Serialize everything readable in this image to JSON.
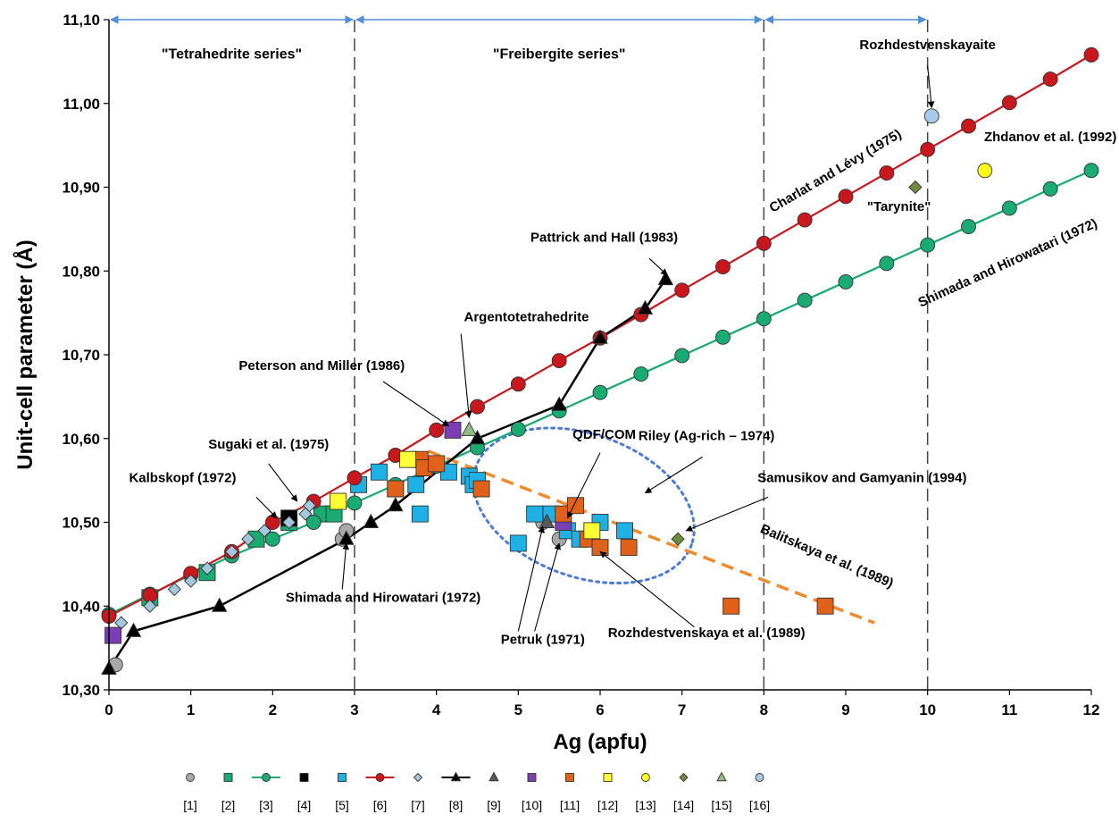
{
  "chart_data": {
    "type": "scatter",
    "xlabel": "Ag (apfu)",
    "ylabel": "Unit-cell parameter (Å)",
    "xlim": [
      0,
      12
    ],
    "ylim": [
      10.3,
      11.1
    ],
    "x_ticks": [
      "0",
      "1",
      "2",
      "3",
      "4",
      "5",
      "6",
      "7",
      "8",
      "9",
      "10",
      "11",
      "12"
    ],
    "y_ticks": [
      "10,30",
      "10,40",
      "10,50",
      "10,60",
      "10,70",
      "10,80",
      "10,90",
      "11,00",
      "11,10"
    ],
    "grid": false,
    "legend_position": "bottom",
    "region_boundaries": [
      3,
      8,
      10
    ],
    "regions": [
      {
        "label": "\"Tetrahedrite series\"",
        "x": 1.5,
        "y": 11.06
      },
      {
        "label": "\"Freibergite series\"",
        "x": 5.5,
        "y": 11.06
      }
    ],
    "series": [
      {
        "name": "[1]",
        "marker": "circle",
        "color": "#a8a8a8",
        "line": false,
        "points": [
          [
            0.08,
            10.33
          ],
          [
            2.85,
            10.48
          ],
          [
            2.9,
            10.49
          ],
          [
            5.3,
            10.5
          ],
          [
            5.5,
            10.48
          ]
        ]
      },
      {
        "name": "[2]",
        "marker": "square",
        "color": "#1aab73",
        "line": false,
        "points": [
          [
            0.5,
            10.41
          ],
          [
            1.2,
            10.44
          ],
          [
            1.8,
            10.48
          ],
          [
            2.2,
            10.5
          ],
          [
            2.6,
            10.51
          ],
          [
            2.75,
            10.51
          ]
        ]
      },
      {
        "name": "[3]",
        "marker": "circle",
        "color": "#1aab73",
        "line": true,
        "line_color": "#1aab73",
        "points": [
          [
            0,
            10.39
          ],
          [
            0.5,
            10.414
          ],
          [
            1.0,
            10.437
          ],
          [
            1.5,
            10.46
          ],
          [
            2.0,
            10.48
          ],
          [
            2.5,
            10.5
          ],
          [
            3.0,
            10.523
          ],
          [
            3.5,
            10.545
          ],
          [
            4.0,
            10.567
          ],
          [
            4.5,
            10.589
          ],
          [
            5.0,
            10.611
          ],
          [
            5.5,
            10.633
          ],
          [
            6.0,
            10.655
          ],
          [
            6.5,
            10.677
          ],
          [
            7.0,
            10.699
          ],
          [
            7.5,
            10.721
          ],
          [
            8.0,
            10.743
          ],
          [
            8.5,
            10.765
          ],
          [
            9.0,
            10.787
          ],
          [
            9.5,
            10.809
          ],
          [
            10.0,
            10.831
          ],
          [
            10.5,
            10.853
          ],
          [
            11.0,
            10.875
          ],
          [
            11.5,
            10.898
          ],
          [
            12.0,
            10.92
          ]
        ]
      },
      {
        "name": "[4]",
        "marker": "square",
        "color": "#000000",
        "line": false,
        "points": [
          [
            2.2,
            10.505
          ]
        ]
      },
      {
        "name": "[5]",
        "marker": "square",
        "color": "#1fb0e6",
        "line": false,
        "points": [
          [
            3.05,
            10.545
          ],
          [
            3.3,
            10.56
          ],
          [
            3.5,
            10.54
          ],
          [
            3.75,
            10.545
          ],
          [
            3.8,
            10.51
          ],
          [
            4.15,
            10.56
          ],
          [
            4.4,
            10.555
          ],
          [
            4.45,
            10.545
          ],
          [
            4.5,
            10.55
          ],
          [
            5.0,
            10.475
          ],
          [
            5.2,
            10.51
          ],
          [
            5.4,
            10.51
          ],
          [
            5.6,
            10.49
          ],
          [
            5.75,
            10.48
          ],
          [
            6.0,
            10.5
          ],
          [
            6.3,
            10.49
          ]
        ]
      },
      {
        "name": "[6]",
        "marker": "circle",
        "color": "#c8171d",
        "line": true,
        "line_color": "#c8171d",
        "points": [
          [
            0,
            10.388
          ],
          [
            0.5,
            10.413
          ],
          [
            1.0,
            10.439
          ],
          [
            1.5,
            10.465
          ],
          [
            2.0,
            10.5
          ],
          [
            2.5,
            10.525
          ],
          [
            3.0,
            10.553
          ],
          [
            3.5,
            10.58
          ],
          [
            4.0,
            10.61
          ],
          [
            4.5,
            10.638
          ],
          [
            5.0,
            10.665
          ],
          [
            5.5,
            10.693
          ],
          [
            6.0,
            10.72
          ],
          [
            6.5,
            10.748
          ],
          [
            7.0,
            10.777
          ],
          [
            7.5,
            10.805
          ],
          [
            8.0,
            10.833
          ],
          [
            8.5,
            10.861
          ],
          [
            9.0,
            10.889
          ],
          [
            9.5,
            10.917
          ],
          [
            10.0,
            10.945
          ],
          [
            10.5,
            10.973
          ],
          [
            11.0,
            11.001
          ],
          [
            11.5,
            11.029
          ],
          [
            12.0,
            11.058
          ]
        ]
      },
      {
        "name": "[7]",
        "marker": "diamond",
        "color": "#a3c8de",
        "line": false,
        "points": [
          [
            0.15,
            10.38
          ],
          [
            0.5,
            10.4
          ],
          [
            0.8,
            10.42
          ],
          [
            1.0,
            10.43
          ],
          [
            1.2,
            10.445
          ],
          [
            1.5,
            10.465
          ],
          [
            1.7,
            10.48
          ],
          [
            1.9,
            10.49
          ],
          [
            2.2,
            10.5
          ],
          [
            2.4,
            10.51
          ],
          [
            2.45,
            10.52
          ]
        ]
      },
      {
        "name": "[8]",
        "marker": "triangle",
        "color": "#000000",
        "line": true,
        "line_color": "#000000",
        "points": [
          [
            0,
            10.325
          ],
          [
            0.3,
            10.37
          ],
          [
            1.35,
            10.4
          ],
          [
            2.9,
            10.48
          ],
          [
            3.2,
            10.5
          ],
          [
            3.5,
            10.52
          ],
          [
            4.5,
            10.6
          ],
          [
            5.5,
            10.64
          ],
          [
            6.0,
            10.72
          ],
          [
            6.55,
            10.755
          ],
          [
            6.8,
            10.79
          ]
        ]
      },
      {
        "name": "[9]",
        "marker": "triangle",
        "color": "#5a5a5a",
        "line": false,
        "points": [
          [
            5.35,
            10.5
          ]
        ]
      },
      {
        "name": "[10]",
        "marker": "square",
        "color": "#7b3fb4",
        "line": false,
        "points": [
          [
            0.05,
            10.365
          ],
          [
            4.2,
            10.61
          ],
          [
            5.55,
            10.5
          ]
        ]
      },
      {
        "name": "[11]",
        "marker": "square",
        "color": "#e0611a",
        "line": false,
        "points": [
          [
            3.5,
            10.54
          ],
          [
            3.8,
            10.575
          ],
          [
            3.85,
            10.565
          ],
          [
            4.0,
            10.57
          ],
          [
            4.55,
            10.54
          ],
          [
            5.55,
            10.51
          ],
          [
            5.7,
            10.52
          ],
          [
            5.85,
            10.48
          ],
          [
            6.0,
            10.47
          ],
          [
            6.35,
            10.47
          ],
          [
            7.6,
            10.4
          ],
          [
            8.75,
            10.4
          ]
        ]
      },
      {
        "name": "[12]",
        "marker": "square",
        "color": "#ffff33",
        "line": false,
        "points": [
          [
            2.8,
            10.525
          ],
          [
            3.65,
            10.575
          ],
          [
            5.9,
            10.49
          ]
        ]
      },
      {
        "name": "[13]",
        "marker": "circle",
        "color": "#ffff1a",
        "line": false,
        "points": [
          [
            10.7,
            10.92
          ]
        ]
      },
      {
        "name": "[14]",
        "marker": "diamond",
        "color": "#6e8c3e",
        "line": false,
        "points": [
          [
            9.85,
            10.9
          ],
          [
            6.95,
            10.48
          ]
        ]
      },
      {
        "name": "[15]",
        "marker": "triangle",
        "color": "#8fbf86",
        "line": false,
        "points": [
          [
            4.4,
            10.61
          ]
        ]
      },
      {
        "name": "[16]",
        "marker": "circle",
        "color": "#a9c8ea",
        "line": false,
        "points": [
          [
            10.05,
            10.985
          ]
        ]
      }
    ],
    "trend_line": {
      "style": "dashed",
      "color": "#f28a2c",
      "points": [
        [
          3.9,
          10.585
        ],
        [
          9.35,
          10.38
        ]
      ]
    },
    "ellipse": {
      "style": "dotted",
      "color": "#4a7bd8",
      "cx": 5.8,
      "cy": 10.52,
      "rx": 1.4,
      "ry": 0.085
    },
    "annotations": [
      {
        "text": "Rozhdestvenskayaite",
        "x": 10.0,
        "y": 11.065
      },
      {
        "text": "Zhdanov et al. (1992)",
        "x": 11.5,
        "y": 10.955
      },
      {
        "text": "\"Tarynite\"",
        "x": 9.65,
        "y": 10.872
      },
      {
        "text": "Pattrick and Hall (1983)",
        "x": 6.05,
        "y": 10.835
      },
      {
        "text": "Argentotetrahedrite",
        "x": 5.1,
        "y": 10.74
      },
      {
        "text": "Peterson and Miller (1986)",
        "x": 2.6,
        "y": 10.682
      },
      {
        "text": "Sugaki et al. (1975)",
        "x": 1.95,
        "y": 10.588
      },
      {
        "text": "QDF/COM",
        "x": 6.05,
        "y": 10.6
      },
      {
        "text": "Riley (Ag-rich – 1974)",
        "x": 7.3,
        "y": 10.598
      },
      {
        "text": "Kalbskopf (1972)",
        "x": 0.9,
        "y": 10.548
      },
      {
        "text": "Samusikov and Gamyanin (1994)",
        "x": 9.2,
        "y": 10.548
      },
      {
        "text": "Shimada and Hirowatari (1972)",
        "x": 3.35,
        "y": 10.405
      },
      {
        "text": "Petruk (1971)",
        "x": 5.3,
        "y": 10.355
      },
      {
        "text": "Rozhdestvenskaya et al. (1989)",
        "x": 7.3,
        "y": 10.363
      }
    ],
    "line_labels": [
      {
        "text": "Charlat and Lévy (1975)",
        "x": 8.9,
        "y": 10.915,
        "angle": -30.5
      },
      {
        "text": "Shimada and Hirowatari (1972)",
        "x": 11.0,
        "y": 10.805,
        "angle": -24.5
      },
      {
        "text": "Balitskaya et al. (1989)",
        "x": 8.75,
        "y": 10.455,
        "angle": 23
      }
    ],
    "arrows": [
      {
        "from": [
          10.0,
          11.045
        ],
        "to": [
          10.05,
          10.995
        ]
      },
      {
        "from": [
          6.6,
          10.815
        ],
        "to": [
          6.82,
          10.795
        ]
      },
      {
        "from": [
          4.3,
          10.725
        ],
        "to": [
          4.4,
          10.625
        ]
      },
      {
        "from": [
          3.35,
          10.668
        ],
        "to": [
          4.15,
          10.615
        ]
      },
      {
        "from": [
          1.95,
          10.57
        ],
        "to": [
          2.3,
          10.525
        ]
      },
      {
        "from": [
          6.0,
          10.583
        ],
        "to": [
          5.6,
          10.505
        ]
      },
      {
        "from": [
          7.25,
          10.578
        ],
        "to": [
          6.55,
          10.535
        ]
      },
      {
        "from": [
          1.8,
          10.53
        ],
        "to": [
          2.05,
          10.505
        ]
      },
      {
        "from": [
          8.05,
          10.53
        ],
        "to": [
          7.05,
          10.49
        ]
      },
      {
        "from": [
          2.85,
          10.42
        ],
        "to": [
          2.9,
          10.475
        ]
      },
      {
        "from": [
          5.0,
          10.37
        ],
        "to": [
          5.3,
          10.495
        ]
      },
      {
        "from": [
          5.2,
          10.37
        ],
        "to": [
          5.5,
          10.475
        ]
      },
      {
        "from": [
          7.15,
          10.375
        ],
        "to": [
          6.0,
          10.465
        ]
      }
    ]
  }
}
